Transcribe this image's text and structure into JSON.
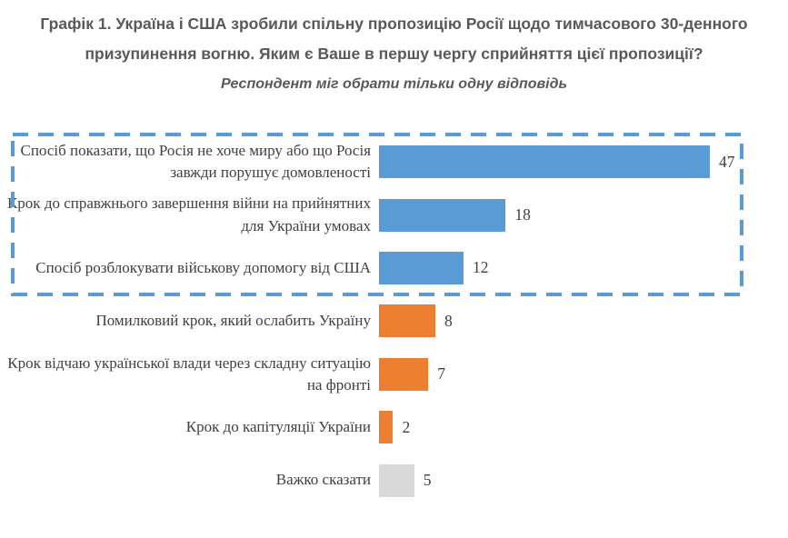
{
  "header": {
    "title": "Графік 1. Україна і США зробили спільну пропозицію Росії щодо тимчасового 30-денного призупинення вогню. Яким є Ваше в першу чергу сприйняття цієї пропозиції?",
    "subtitle": "Респондент міг обрати тільки одну відповідь"
  },
  "colors": {
    "blue_bar": "#5B9BD5",
    "orange_bar": "#ED7D31",
    "gray_bar": "#D9D9D9",
    "highlight_border": "#5B9BD5",
    "title_text": "#595959",
    "label_text": "#404040"
  },
  "chart_data": {
    "type": "bar",
    "orientation": "horizontal",
    "title": "Графік 1. Україна і США зробили спільну пропозицію Росії щодо тимчасового 30-денного призупинення вогню. Яким є Ваше в першу чергу сприйняття цієї пропозиції?",
    "subtitle": "Респондент міг обрати тільки одну відповідь",
    "categories": [
      "Спосіб показати, що Росія не хоче миру або що Росія завжди порушує домовленості",
      "Крок до справжнього завершення війни на прийнятних для України умовах",
      "Спосіб розблокувати військову допомогу від США",
      "Помилковий крок, який ослабить Україну",
      "Крок відчаю української влади через складну ситуацію на фронті",
      "Крок до капітуляції України",
      "Важко сказати"
    ],
    "values": [
      47,
      18,
      12,
      8,
      7,
      2,
      5
    ],
    "series_colors": [
      "#5B9BD5",
      "#5B9BD5",
      "#5B9BD5",
      "#ED7D31",
      "#ED7D31",
      "#ED7D31",
      "#D9D9D9"
    ],
    "value_labels_shown": true,
    "xlabel": "",
    "ylabel": "",
    "xlim": [
      0,
      52
    ],
    "grid": false,
    "legend": "none",
    "annotations": "dashed blue rectangle highlighting the first three (blue) bars"
  }
}
